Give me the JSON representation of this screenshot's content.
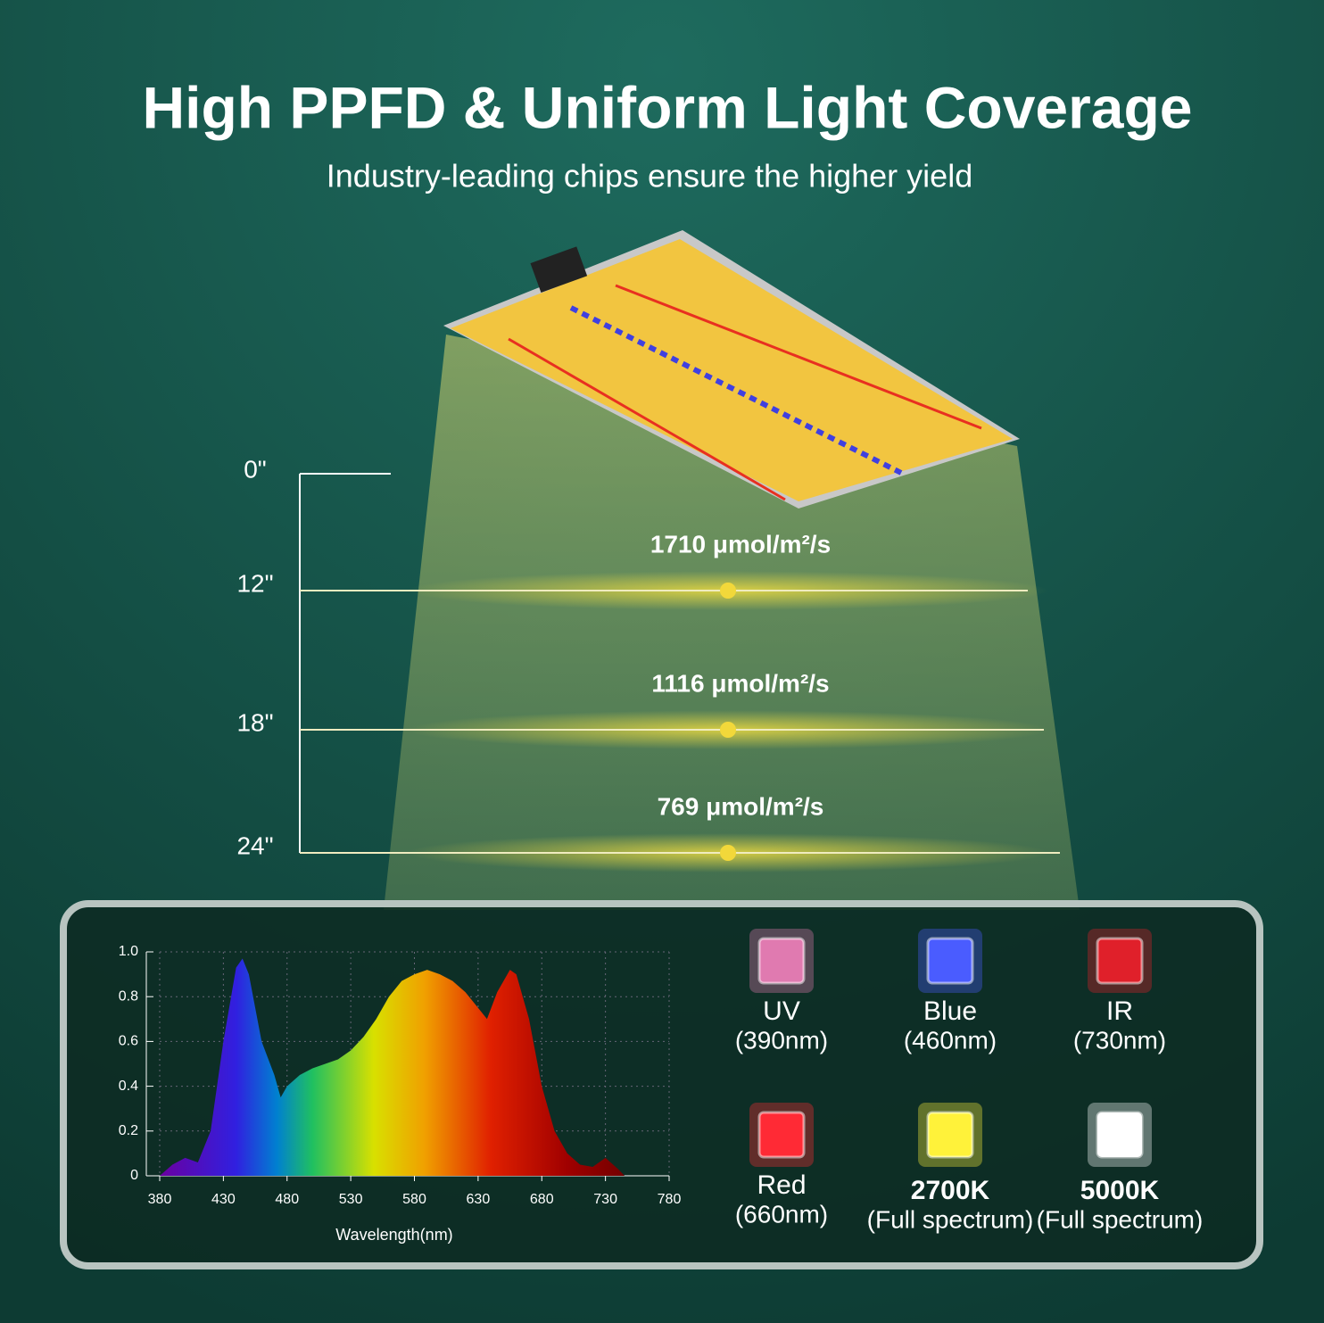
{
  "header": {
    "title": "High PPFD & Uniform Light Coverage",
    "subtitle": "Industry-leading chips ensure the higher yield"
  },
  "heights": [
    "0\"",
    "12\"",
    "18\"",
    "24\""
  ],
  "ppfd": [
    "1710 μmol/m²/s",
    "1116 μmol/m²/s",
    "769 μmol/m²/s"
  ],
  "chart_data": {
    "type": "area",
    "x_label": "Wavelength(nm)",
    "x": [
      380,
      390,
      400,
      410,
      420,
      430,
      440,
      445,
      450,
      460,
      470,
      475,
      480,
      490,
      500,
      510,
      520,
      530,
      540,
      550,
      560,
      570,
      580,
      590,
      600,
      610,
      620,
      630,
      637,
      645,
      655,
      660,
      670,
      680,
      690,
      700,
      710,
      720,
      730,
      740,
      745
    ],
    "values": [
      0,
      0.05,
      0.08,
      0.06,
      0.2,
      0.6,
      0.93,
      0.97,
      0.9,
      0.6,
      0.45,
      0.35,
      0.4,
      0.45,
      0.48,
      0.5,
      0.52,
      0.56,
      0.62,
      0.7,
      0.8,
      0.87,
      0.9,
      0.92,
      0.9,
      0.87,
      0.82,
      0.75,
      0.7,
      0.82,
      0.92,
      0.9,
      0.7,
      0.4,
      0.2,
      0.1,
      0.05,
      0.04,
      0.08,
      0.03,
      0
    ],
    "xlim": [
      380,
      780
    ],
    "ylim": [
      0,
      1
    ],
    "xticks": [
      380,
      430,
      480,
      530,
      580,
      630,
      680,
      730,
      780
    ],
    "yticks": [
      0,
      0.2,
      0.4,
      0.6,
      0.8,
      {
        "value": 1,
        "label": "1.0"
      }
    ],
    "grid": true
  },
  "leds": [
    {
      "name": "UV",
      "spec": "(390nm)",
      "color": "#e07ab0"
    },
    {
      "name": "Blue",
      "spec": "(460nm)",
      "color": "#4a5cff"
    },
    {
      "name": "IR",
      "spec": "(730nm)",
      "color": "#e0202a"
    },
    {
      "name": "Red",
      "spec": "(660nm)",
      "color": "#ff2a35"
    },
    {
      "name": "2700K",
      "spec": "(Full spectrum)",
      "color": "#fff23a"
    },
    {
      "name": "5000K",
      "spec": "(Full spectrum)",
      "color": "#ffffff"
    }
  ]
}
